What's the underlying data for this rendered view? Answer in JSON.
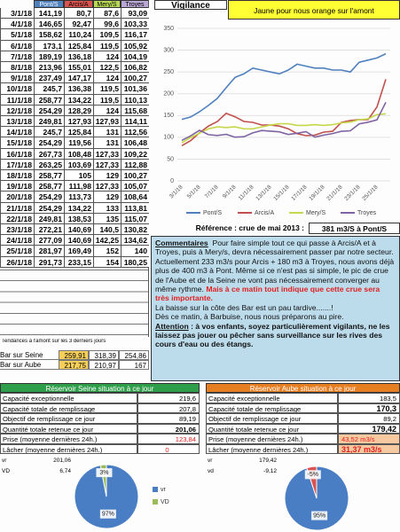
{
  "table": {
    "header": [
      "Pont/S",
      "Arcis/A",
      "Mery/S",
      "Troyes"
    ],
    "rows": [
      [
        "3/1/18",
        "141,19",
        "80,7",
        "87,6",
        "93,09"
      ],
      [
        "4/1/18",
        "146,65",
        "92,47",
        "99,6",
        "103,33"
      ],
      [
        "5/1/18",
        "158,62",
        "110,24",
        "109,5",
        "116,17"
      ],
      [
        "6/1/18",
        "173,1",
        "125,84",
        "119,5",
        "105,92"
      ],
      [
        "7/1/18",
        "189,19",
        "136,18",
        "124",
        "104,19"
      ],
      [
        "8/1/18",
        "213,96",
        "155,01",
        "122,5",
        "106,82"
      ],
      [
        "9/1/18",
        "237,49",
        "147,17",
        "124",
        "100,27"
      ],
      [
        "10/1/18",
        "245,7",
        "136,38",
        "119,5",
        "101,36"
      ],
      [
        "11/1/18",
        "258,77",
        "134,22",
        "119,5",
        "110,13"
      ],
      [
        "12/1/18",
        "254,29",
        "128,29",
        "124",
        "115,68"
      ],
      [
        "13/1/18",
        "249,81",
        "127,93",
        "127,93",
        "114,11"
      ],
      [
        "14/1/18",
        "245,7",
        "125,84",
        "131",
        "112,56"
      ],
      [
        "15/1/18",
        "254,29",
        "119,56",
        "131",
        "106,48"
      ],
      [
        "16/1/18",
        "267,73",
        "108,48",
        "127,33",
        "109,22"
      ],
      [
        "17/1/18",
        "263,25",
        "103,69",
        "127,33",
        "112,88"
      ],
      [
        "18/1/18",
        "258,77",
        "105",
        "129",
        "100,27"
      ],
      [
        "19/1/18",
        "258,77",
        "111,98",
        "127,33",
        "105,07"
      ],
      [
        "20/1/18",
        "254,29",
        "113,73",
        "129",
        "108,64"
      ],
      [
        "21/1/18",
        "254,29",
        "134,22",
        "133",
        "113,81"
      ],
      [
        "22/1/18",
        "249,81",
        "138,53",
        "135",
        "115,07"
      ],
      [
        "23/1/18",
        "272,21",
        "140,69",
        "140,5",
        "130,82"
      ],
      [
        "24/1/18",
        "277,09",
        "140,69",
        "142,25",
        "134,62"
      ],
      [
        "25/1/18",
        "281,97",
        "169,49",
        "152",
        "140"
      ],
      [
        "26/1/18",
        "291,73",
        "233,15",
        "154",
        "180,25"
      ]
    ]
  },
  "vigilance": {
    "title": "Vigilance",
    "note": "Jaune pour nous orange sur l'amont"
  },
  "chart_data": [
    {
      "type": "line",
      "categories": [
        "3/1/18",
        null,
        "5/1/18",
        null,
        "7/1/18",
        null,
        "9/1/18",
        null,
        "11/1/18",
        null,
        "13/1/18",
        null,
        "15/1/18",
        null,
        "17/1/18",
        null,
        "19/1/18",
        null,
        "21/1/18",
        null,
        "23/1/18",
        null,
        "25/1/18",
        null
      ],
      "series": [
        {
          "name": "Pont/S",
          "color": "#4f81bd",
          "values": [
            141.19,
            146.65,
            158.62,
            173.1,
            189.19,
            213.96,
            237.49,
            245.7,
            258.77,
            254.29,
            249.81,
            245.7,
            254.29,
            267.73,
            263.25,
            258.77,
            258.77,
            254.29,
            254.29,
            249.81,
            272.21,
            277.09,
            281.97,
            291.73
          ]
        },
        {
          "name": "Arcis/A",
          "color": "#c0504d",
          "values": [
            80.7,
            92.47,
            110.24,
            125.84,
            136.18,
            155.01,
            147.17,
            136.38,
            134.22,
            128.29,
            127.93,
            125.84,
            119.56,
            108.48,
            103.69,
            105,
            111.98,
            113.73,
            134.22,
            138.53,
            140.69,
            140.69,
            169.49,
            233.15
          ]
        },
        {
          "name": "Mery/S",
          "color": "#c6d84a",
          "values": [
            87.6,
            99.6,
            109.5,
            119.5,
            124,
            122.5,
            124,
            119.5,
            119.5,
            124,
            127.93,
            131,
            131,
            127.33,
            127.33,
            129,
            127.33,
            129,
            133,
            135,
            140.5,
            142.25,
            152,
            154
          ]
        },
        {
          "name": "Troyes",
          "color": "#8064a2",
          "values": [
            93.09,
            103.33,
            116.17,
            105.92,
            104.19,
            106.82,
            100.27,
            101.36,
            110.13,
            115.68,
            114.11,
            112.56,
            106.48,
            109.22,
            112.88,
            100.27,
            105.07,
            108.64,
            113.81,
            115.07,
            130.82,
            134.62,
            140,
            180.25
          ]
        }
      ],
      "ylim": [
        0,
        350
      ],
      "yticks": [
        0,
        50,
        100,
        150,
        200,
        250,
        300,
        350
      ],
      "grid": true,
      "legend": "bottom"
    },
    {
      "type": "pie",
      "categories": [
        "vr",
        "VD"
      ],
      "values": [
        97,
        3
      ],
      "value_labels": [
        "97%",
        "3%"
      ],
      "colors": [
        "#4a7ec4",
        "#9bbb59"
      ],
      "legend": "right"
    },
    {
      "type": "pie",
      "values": [
        95,
        -5
      ],
      "value_labels": [
        "95%",
        "-5%"
      ],
      "colors": [
        "#4a7ec4",
        "#d9534f"
      ]
    }
  ],
  "reference": {
    "label": "Référence :  crue de mai 2013 :",
    "value": "381 m3/S à Pont/S"
  },
  "comment": {
    "title": "Commentaires",
    "p1": "Pour faire simple tout ce qui passe à Arcis/A et à Troyes, puis à Mery/s, devra nécessairement passer par notre secteur. Actuellement 233 m3/s pour Arcis + 180 m3 à Troyes, nous avons déjà plus de 400 m3 à Pont. Même si ce n'est pas si simple, le pic de crue de l'Aube et de la Seine ne vont pas nécessairement converger au même rythme.",
    "p1_red": "Mais à ce matin tout indique que cette crue sera très importante.",
    "p2": "La baisse sur la côte des Bar est un pau tardive.......!",
    "p3": "Dès ce matin, à Barbuise, nous nous préparons au pire.",
    "p4_title": "Attention",
    "p4": ": à vos enfants, soyez particulièrement vigilants, ne les laissez pas jouer ou pêcher sans surveillance sur les rives des cours d'eau ou des étangs."
  },
  "trends": {
    "title": "Tendances à l'amont sur les 3 derniers jours",
    "rows": [
      [
        "Bar sur Seine",
        "259,91",
        "318,39",
        "254,86"
      ],
      [
        "Bar sur Aube",
        "217,75",
        "210,97",
        "167"
      ]
    ]
  },
  "reservoir_seine": {
    "title": "Réservoir Seine  situation à ce jour",
    "rows": [
      [
        "Capacité exceptionnelle",
        "219,6"
      ],
      [
        "Capacité totale de remplissage",
        "207,8"
      ],
      [
        "Objectif de remplissage ce jour",
        "89,19"
      ],
      [
        "Quantité totale retenue ce jour",
        "201,06"
      ],
      [
        "Prise (moyenne dernières 24h.)",
        "123,84"
      ],
      [
        "Lâcher (moyenne dernières 24h.)",
        "0"
      ]
    ],
    "extra": [
      [
        "vr",
        "201,06"
      ],
      [
        "VD",
        "6,74"
      ]
    ]
  },
  "reservoir_aube": {
    "title": "Réservoir Aube situation à ce jour",
    "rows": [
      [
        "Capacité exceptionnelle",
        "183,5"
      ],
      [
        "Capacité totale de remplissage",
        "170,3"
      ],
      [
        "Objectif de remplissage ce jour",
        "89,2"
      ],
      [
        "Quantité totale retenue ce jour",
        "179,42"
      ],
      [
        "Prise (moyenne dernières 24h.)",
        "43,52 m3/s"
      ],
      [
        "Lâcher (moyenne dernières 24h.)",
        "31,37 m3/s"
      ]
    ],
    "extra": [
      [
        "vr",
        "179,42"
      ],
      [
        "vd",
        "-9,12"
      ]
    ]
  }
}
